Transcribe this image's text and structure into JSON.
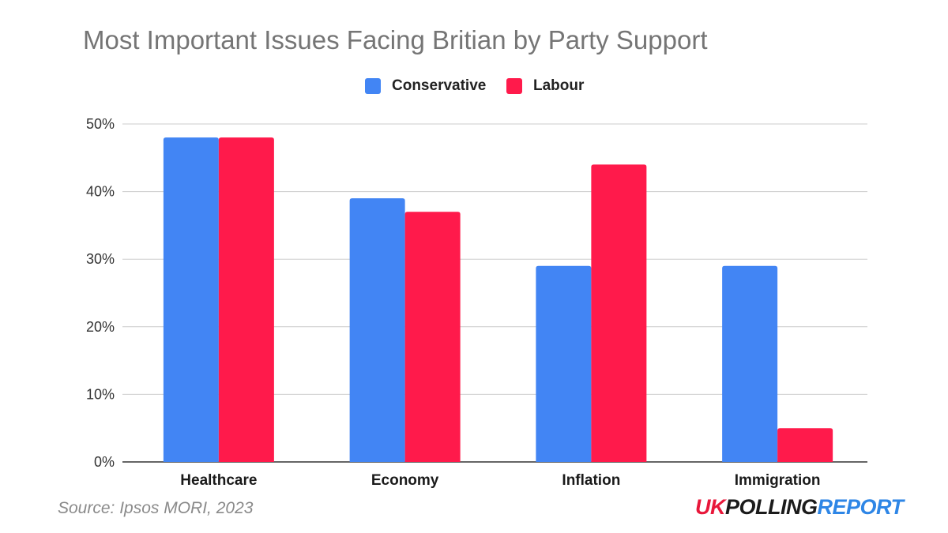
{
  "chart_data": {
    "type": "bar",
    "title": "Most Important Issues Facing Britian by Party Support",
    "categories": [
      "Healthcare",
      "Economy",
      "Inflation",
      "Immigration"
    ],
    "series": [
      {
        "name": "Conservative",
        "color": "#4285F4",
        "values": [
          48,
          39,
          29,
          29
        ]
      },
      {
        "name": "Labour",
        "color": "#FF1A4B",
        "values": [
          48,
          37,
          44,
          5
        ]
      }
    ],
    "y_ticks": [
      "0%",
      "10%",
      "20%",
      "30%",
      "40%",
      "50%"
    ],
    "ylim": [
      0,
      50
    ],
    "xlabel": "",
    "ylabel": "",
    "grid": true,
    "legend_position": "top-center"
  },
  "source": "Source: Ipsos MORI, 2023",
  "brand": {
    "part1": "UK",
    "part2": "POLLING",
    "part3": "REPORT",
    "color1": "#E8173A",
    "color2": "#1B1B1B",
    "color3": "#2E86E6"
  }
}
